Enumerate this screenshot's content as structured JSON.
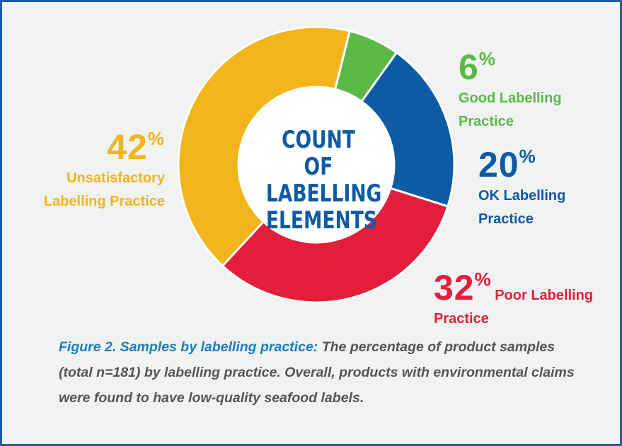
{
  "chart_data": {
    "type": "pie",
    "title": "COUNT OF LABELLING ELEMENTS",
    "categories": [
      "Good Labelling Practice",
      "OK Labelling Practice",
      "Poor Labelling Practice",
      "Unsatisfactory Labelling Practice"
    ],
    "values": [
      6,
      20,
      32,
      42
    ],
    "value_labels": [
      "6%",
      "20%",
      "32%",
      "42%"
    ],
    "colors": [
      "#5bb947",
      "#0d5ba4",
      "#e31e3b",
      "#f2b51c"
    ],
    "caption_title": "Figure 2. Samples by labelling practice:",
    "caption_text": "The percentage of product samples (total n=181) by labelling practice. Overall, products with environmental claims were found to have low-quality seafood labels."
  }
}
